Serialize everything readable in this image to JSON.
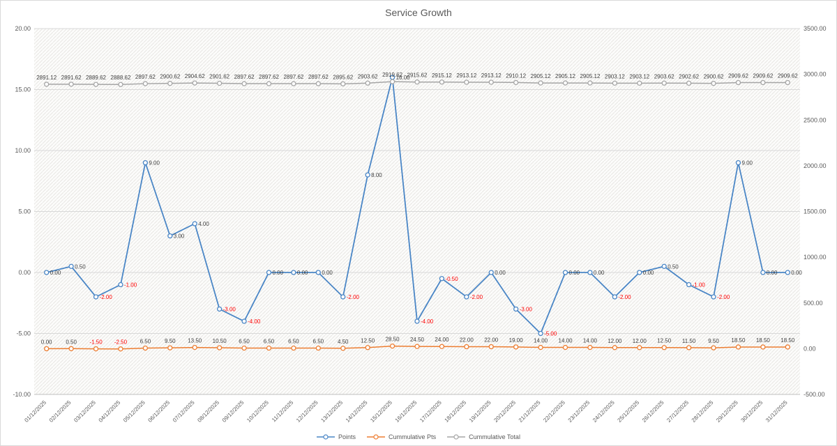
{
  "chart_data": {
    "type": "line",
    "title": "Service Growth",
    "legend_position": "bottom",
    "grid": true,
    "x": [
      "01/12/2025",
      "02/12/2025",
      "03/12/2025",
      "04/12/2025",
      "05/12/2025",
      "06/12/2025",
      "07/12/2025",
      "08/12/2025",
      "09/12/2025",
      "10/12/2025",
      "11/12/2025",
      "12/12/2025",
      "13/12/2025",
      "14/12/2025",
      "15/12/2025",
      "16/12/2025",
      "17/12/2025",
      "18/12/2025",
      "19/12/2025",
      "20/12/2025",
      "21/12/2025",
      "22/12/2025",
      "23/12/2025",
      "24/12/2025",
      "25/12/2025",
      "26/12/2025",
      "27/12/2025",
      "28/12/2025",
      "29/12/2025",
      "30/12/2025",
      "31/12/2025"
    ],
    "series": [
      {
        "name": "Points",
        "axis": "left",
        "color": "#4a86c6",
        "label_position": "right",
        "values": [
          0,
          0.5,
          -2,
          -1,
          9,
          3,
          4,
          -3,
          -4,
          0,
          0,
          0,
          -2,
          8,
          16,
          -4,
          -0.5,
          -2,
          0,
          -3,
          -5,
          0,
          0,
          -2,
          0,
          0.5,
          -1,
          -2,
          9,
          0,
          0
        ]
      },
      {
        "name": "Cummulative Pts",
        "axis": "right",
        "color": "#ed7d31",
        "label_position": "above",
        "values": [
          0,
          0.5,
          -1.5,
          -2.5,
          6.5,
          9.5,
          13.5,
          10.5,
          6.5,
          6.5,
          6.5,
          6.5,
          4.5,
          12.5,
          28.5,
          24.5,
          24,
          22,
          22,
          19,
          14,
          14,
          14,
          12,
          12,
          12.5,
          11.5,
          9.5,
          18.5,
          18.5,
          18.5
        ]
      },
      {
        "name": "Cummulative Total",
        "axis": "right",
        "color": "#a5a5a5",
        "label_position": "above",
        "values": [
          2891.12,
          2891.62,
          2889.62,
          2888.62,
          2897.62,
          2900.62,
          2904.62,
          2901.62,
          2897.62,
          2897.62,
          2897.62,
          2897.62,
          2895.62,
          2903.62,
          2919.62,
          2915.62,
          2915.12,
          2913.12,
          2913.12,
          2910.12,
          2905.12,
          2905.12,
          2905.12,
          2903.12,
          2903.12,
          2903.62,
          2902.62,
          2900.62,
          2909.62,
          2909.62,
          2909.62
        ]
      }
    ],
    "left_axis": {
      "min": -10,
      "max": 20,
      "ticks": [
        "20.00",
        "15.00",
        "10.00",
        "5.00",
        "0.00",
        "-5.00",
        "-10.00"
      ]
    },
    "right_axis": {
      "min": -500,
      "max": 3500,
      "ticks": [
        "3500.00",
        "3000.00",
        "2500.00",
        "2000.00",
        "1500.00",
        "1000.00",
        "500.00",
        "0.00",
        "-500.00"
      ]
    },
    "colors": {
      "grid": "#d9d9d9",
      "axis_line": "#bfbfbf",
      "axis_text": "#595959",
      "data_label": "#404040",
      "negative_label": "#ff0000",
      "title_text": "#595959",
      "plot_pattern_line": "#e8e7e4",
      "plot_pattern_bg": "#fcfcfb"
    }
  }
}
